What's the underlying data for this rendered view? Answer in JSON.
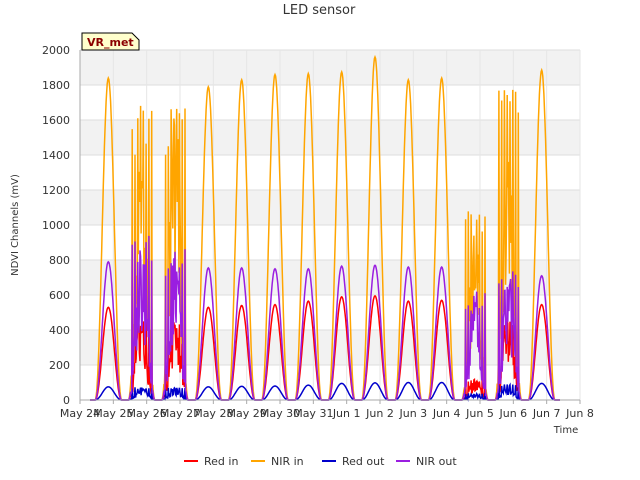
{
  "chart_data": {
    "type": "line",
    "title": "LED sensor",
    "xlabel": "Time",
    "ylabel": "NDVI Channels (mV)",
    "badge": "VR_met",
    "ylim": [
      0,
      2000
    ],
    "yticks": [
      0,
      200,
      400,
      600,
      800,
      1000,
      1200,
      1400,
      1600,
      1800,
      2000
    ],
    "xlim": [
      0,
      15
    ],
    "xticks": [
      {
        "pos": 0,
        "label": "May 24"
      },
      {
        "pos": 1,
        "label": "May 25"
      },
      {
        "pos": 2,
        "label": "May 26"
      },
      {
        "pos": 3,
        "label": "May 27"
      },
      {
        "pos": 4,
        "label": "May 28"
      },
      {
        "pos": 5,
        "label": "May 29"
      },
      {
        "pos": 6,
        "label": "May 30"
      },
      {
        "pos": 7,
        "label": "May 31"
      },
      {
        "pos": 8,
        "label": "Jun 1"
      },
      {
        "pos": 9,
        "label": "Jun 2"
      },
      {
        "pos": 10,
        "label": "Jun 3"
      },
      {
        "pos": 11,
        "label": "Jun 4"
      },
      {
        "pos": 12,
        "label": "Jun 5"
      },
      {
        "pos": 13,
        "label": "Jun 6"
      },
      {
        "pos": 14,
        "label": "Jun 7"
      },
      {
        "pos": 15,
        "label": "Jun 8"
      }
    ],
    "day_centers": [
      0.85,
      1.85,
      2.85,
      3.85,
      4.85,
      5.85,
      6.85,
      7.85,
      8.85,
      9.85,
      10.85,
      11.85,
      12.85,
      13.85
    ],
    "series": [
      {
        "name": "Red in",
        "color": "#ff0000",
        "peaks": [
          530,
          520,
          480,
          530,
          540,
          545,
          565,
          590,
          595,
          565,
          570,
          130,
          500,
          545
        ]
      },
      {
        "name": "NIR in",
        "color": "#ffa500",
        "peaks": [
          1840,
          1700,
          1720,
          1790,
          1830,
          1860,
          1865,
          1875,
          1960,
          1830,
          1840,
          1090,
          1830,
          1885
        ]
      },
      {
        "name": "Red out",
        "color": "#0000cc",
        "peaks": [
          75,
          75,
          70,
          75,
          78,
          80,
          85,
          95,
          98,
          100,
          100,
          40,
          90,
          95
        ]
      },
      {
        "name": "NIR out",
        "color": "#9a1ee0",
        "peaks": [
          790,
          940,
          880,
          755,
          755,
          750,
          750,
          765,
          770,
          760,
          760,
          620,
          750,
          710
        ]
      }
    ],
    "cloudy_days": [
      1,
      2,
      11,
      12
    ],
    "legend_position": "bottom"
  }
}
